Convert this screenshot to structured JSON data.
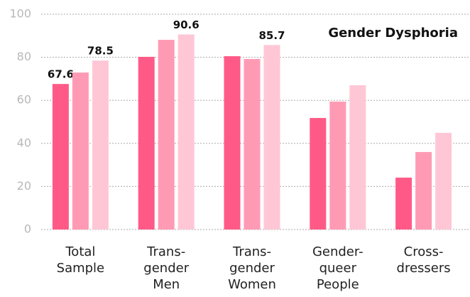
{
  "chart_data": {
    "type": "bar",
    "title": "Gender Dysphoria",
    "categories": [
      [
        "Total",
        "Sample"
      ],
      [
        "Trans-",
        "gender",
        "Men"
      ],
      [
        "Trans-",
        "gender",
        "Women"
      ],
      [
        "Gender-",
        "queer",
        "People"
      ],
      [
        "Cross-",
        "dressers"
      ]
    ],
    "series": [
      {
        "color": "#ff5a87",
        "values": [
          67.6,
          80.2,
          80.5,
          51.8,
          24.1
        ],
        "value_labels": [
          "67.6",
          null,
          null,
          null,
          null
        ]
      },
      {
        "color": "#ff9ab5",
        "values": [
          72.9,
          88.1,
          79.2,
          59.4,
          36
        ],
        "value_labels": [
          null,
          null,
          null,
          null,
          null
        ]
      },
      {
        "color": "#ffc7d6",
        "values": [
          78.5,
          90.6,
          85.7,
          67,
          44.9
        ],
        "value_labels": [
          "78.5",
          "90.6",
          "85.7",
          null,
          null
        ]
      }
    ],
    "ylim": [
      0,
      100
    ],
    "yticks": [
      0,
      20,
      40,
      60,
      80,
      100
    ],
    "grid": true
  }
}
